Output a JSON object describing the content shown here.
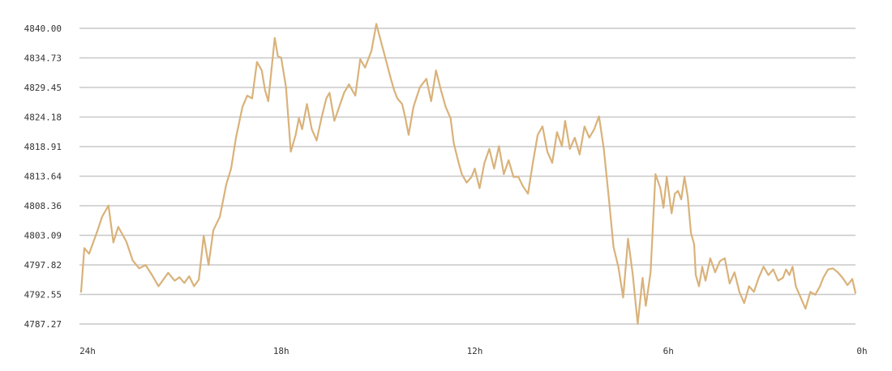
{
  "chart_data": {
    "type": "line",
    "grid": true,
    "colors": {
      "line": "#d9b27a",
      "grid": "#c8c8c8",
      "text": "#333333"
    },
    "ylim": [
      4787.27,
      4840.0
    ],
    "y_ticks": [
      "4840.00",
      "4834.73",
      "4829.45",
      "4824.18",
      "4818.91",
      "4813.64",
      "4808.36",
      "4803.09",
      "4797.82",
      "4792.55",
      "4787.27"
    ],
    "xlim": [
      24,
      0
    ],
    "x_ticks": [
      {
        "value": 24,
        "label": "24h"
      },
      {
        "value": 18,
        "label": "18h"
      },
      {
        "value": 12,
        "label": "12h"
      },
      {
        "value": 6,
        "label": "6h"
      },
      {
        "value": 0,
        "label": "0h"
      }
    ],
    "series": [
      {
        "x": [
          24.0,
          23.9,
          23.75,
          23.5,
          23.35,
          23.15,
          23.0,
          22.85,
          22.6,
          22.4,
          22.2,
          22.0,
          21.8,
          21.6,
          21.3,
          21.1,
          20.95,
          20.8,
          20.65,
          20.5,
          20.35,
          20.2,
          20.05,
          19.9,
          19.7,
          19.5,
          19.35,
          19.2,
          19.0,
          18.85,
          18.7,
          18.55,
          18.4,
          18.3,
          18.2,
          18.0,
          17.9,
          17.8,
          17.65,
          17.5,
          17.35,
          17.25,
          17.15,
          17.0,
          16.85,
          16.7,
          16.55,
          16.4,
          16.3,
          16.15,
          16.0,
          15.85,
          15.7,
          15.5,
          15.35,
          15.2,
          15.0,
          14.85,
          14.7,
          14.55,
          14.4,
          14.3,
          14.2,
          14.05,
          13.95,
          13.85,
          13.7,
          13.5,
          13.3,
          13.15,
          13.0,
          12.85,
          12.7,
          12.55,
          12.45,
          12.3,
          12.2,
          12.05,
          11.9,
          11.8,
          11.65,
          11.5,
          11.35,
          11.2,
          11.05,
          10.9,
          10.75,
          10.6,
          10.45,
          10.3,
          10.15,
          10.0,
          9.85,
          9.7,
          9.55,
          9.4,
          9.25,
          9.1,
          9.0,
          8.85,
          8.7,
          8.55,
          8.4,
          8.25,
          8.1,
          7.95,
          7.8,
          7.65,
          7.5,
          7.35,
          7.2,
          7.05,
          6.9,
          6.75,
          6.6,
          6.5,
          6.35,
          6.2,
          6.05,
          5.95,
          5.85,
          5.7,
          5.6,
          5.5,
          5.4,
          5.3,
          5.2,
          5.1,
          5.0,
          4.95,
          4.85,
          4.75,
          4.65,
          4.5,
          4.35,
          4.2,
          4.05,
          3.9,
          3.75,
          3.6,
          3.45,
          3.3,
          3.15,
          3.0,
          2.85,
          2.7,
          2.55,
          2.4,
          2.25,
          2.15,
          2.05,
          1.95,
          1.85,
          1.7,
          1.55,
          1.4,
          1.25,
          1.1,
          1.0,
          0.85,
          0.7,
          0.55,
          0.4,
          0.25,
          0.1,
          0.0
        ],
        "values": [
          4793.0,
          4800.8,
          4799.8,
          4803.8,
          4806.4,
          4808.4,
          4801.8,
          4804.6,
          4802.0,
          4798.6,
          4797.2,
          4797.8,
          4796.0,
          4794.0,
          4796.4,
          4795.0,
          4795.6,
          4794.6,
          4795.8,
          4794.0,
          4795.2,
          4803.0,
          4797.8,
          4804.0,
          4806.4,
          4812.2,
          4815.0,
          4820.5,
          4826.0,
          4828.0,
          4827.5,
          4834.0,
          4832.5,
          4829.0,
          4827.0,
          4838.3,
          4835.0,
          4834.8,
          4829.5,
          4818.0,
          4821.0,
          4824.0,
          4822.0,
          4826.5,
          4822.0,
          4820.0,
          4824.0,
          4827.5,
          4828.5,
          4823.5,
          4826.0,
          4828.5,
          4830.0,
          4828.0,
          4834.5,
          4833.0,
          4836.0,
          4840.8,
          4837.5,
          4834.3,
          4831.0,
          4829.0,
          4827.5,
          4826.5,
          4824.0,
          4821.0,
          4826.0,
          4829.5,
          4831.0,
          4827.0,
          4832.5,
          4829.0,
          4826.0,
          4824.0,
          4819.5,
          4816.0,
          4814.0,
          4812.5,
          4813.5,
          4815.0,
          4811.5,
          4816.0,
          4818.5,
          4815.0,
          4819.0,
          4814.0,
          4816.5,
          4813.5,
          4813.5,
          4811.8,
          4810.5,
          4816.0,
          4821.0,
          4822.5,
          4818.0,
          4816.0,
          4821.5,
          4819.0,
          4823.5,
          4818.5,
          4820.5,
          4817.5,
          4822.5,
          4820.5,
          4822.0,
          4824.3,
          4818.5,
          4810.0,
          4801.0,
          4797.5,
          4792.0,
          4802.5,
          4796.0,
          4787.3,
          4795.5,
          4790.5,
          4796.5,
          4814.0,
          4811.5,
          4808.0,
          4813.5,
          4807.0,
          4810.5,
          4811.0,
          4809.5,
          4813.5,
          4810.0,
          4803.5,
          4801.5,
          4796.0,
          4794.0,
          4797.5,
          4795.0,
          4799.0,
          4796.5,
          4798.5,
          4799.0,
          4794.5,
          4796.5,
          4793.0,
          4791.0,
          4794.0,
          4793.0,
          4795.5,
          4797.5,
          4796.0,
          4797.0,
          4795.0,
          4795.5,
          4797.0,
          4796.0,
          4797.5,
          4794.0,
          4792.0,
          4790.0,
          4793.0,
          4792.5,
          4794.0,
          4795.5,
          4797.0,
          4797.2,
          4796.5,
          4795.5,
          4794.2,
          4795.3,
          4792.8
        ]
      }
    ]
  }
}
